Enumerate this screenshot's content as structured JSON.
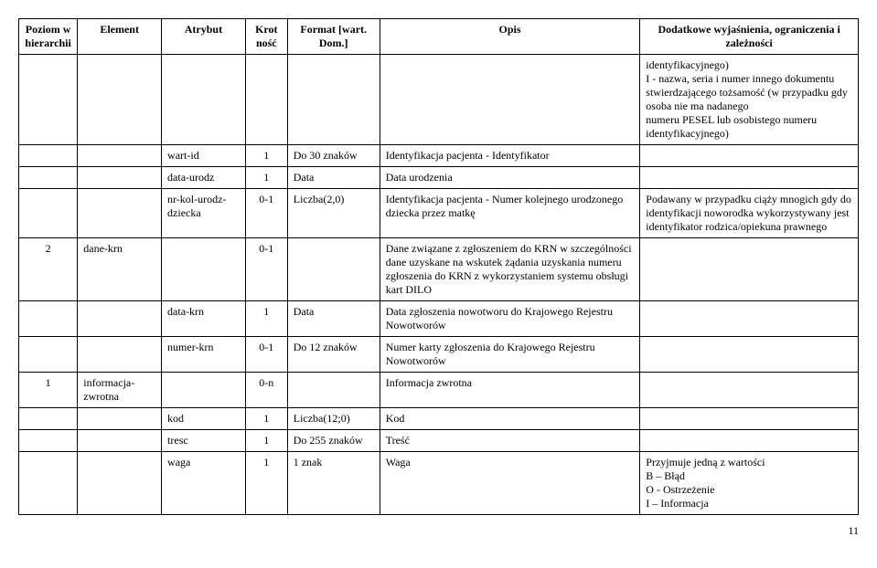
{
  "headers": {
    "poziom": "Poziom w hierarchii",
    "element": "Element",
    "atrybut": "Atrybut",
    "krot": "Krot ność",
    "format": "Format [wart. Dom.]",
    "opis": "Opis",
    "dodatkowe": "Dodatkowe wyjaśnienia, ograniczenia i zależności"
  },
  "rows": [
    {
      "poziom": "",
      "element": "",
      "atrybut": "",
      "krot": "",
      "format": "",
      "opis": "",
      "dodatkowe": "identyfikacyjnego)\nI - nazwa, seria i numer innego dokumentu stwierdzającego tożsamość (w przypadku gdy osoba nie ma nadanego\nnumeru PESEL lub osobistego numeru identyfikacyjnego)"
    },
    {
      "poziom": "",
      "element": "",
      "atrybut": "wart-id",
      "krot": "1",
      "format": "Do 30 znaków",
      "opis": "Identyfikacja pacjenta  - Identyfikator",
      "dodatkowe": ""
    },
    {
      "poziom": "",
      "element": "",
      "atrybut": "data-urodz",
      "krot": "1",
      "format": "Data",
      "opis": "Data urodzenia",
      "dodatkowe": ""
    },
    {
      "poziom": "",
      "element": "",
      "atrybut": "nr-kol-urodz-dziecka",
      "krot": "0-1",
      "format": "Liczba(2,0)",
      "opis": "Identyfikacja pacjenta - Numer kolejnego urodzonego dziecka przez matkę",
      "dodatkowe": "Podawany w przypadku ciąży mnogich gdy do identyfikacji noworodka wykorzystywany jest identyfikator rodzica/opiekuna prawnego"
    },
    {
      "poziom": "2",
      "element": "dane-krn",
      "atrybut": "",
      "krot": "0-1",
      "format": "",
      "opis": "Dane związane z zgłoszeniem do KRN w szczególności dane uzyskane na wskutek żądania uzyskania numeru zgłoszenia do KRN z wykorzystaniem systemu obsługi kart DILO",
      "dodatkowe": ""
    },
    {
      "poziom": "",
      "element": "",
      "atrybut": "data-krn",
      "krot": "1",
      "format": "Data",
      "opis": "Data zgłoszenia nowotworu do Krajowego Rejestru Nowotworów",
      "dodatkowe": ""
    },
    {
      "poziom": "",
      "element": "",
      "atrybut": "numer-krn",
      "krot": "0-1",
      "format": "Do 12 znaków",
      "opis": "Numer karty zgłoszenia do Krajowego Rejestru Nowotworów",
      "dodatkowe": ""
    },
    {
      "poziom": "1",
      "element": "informacja-zwrotna",
      "atrybut": "",
      "krot": "0-n",
      "format": "",
      "opis": "Informacja zwrotna",
      "dodatkowe": ""
    },
    {
      "poziom": "",
      "element": "",
      "atrybut": "kod",
      "krot": "1",
      "format": "Liczba(12;0)",
      "opis": "Kod",
      "dodatkowe": ""
    },
    {
      "poziom": "",
      "element": "",
      "atrybut": "tresc",
      "krot": "1",
      "format": "Do 255 znaków",
      "opis": "Treść",
      "dodatkowe": ""
    },
    {
      "poziom": "",
      "element": "",
      "atrybut": "waga",
      "krot": "1",
      "format": "1 znak",
      "opis": "Waga",
      "dodatkowe": "Przyjmuje jedną z wartości\nB – Błąd\nO - Ostrzeżenie\nI – Informacja"
    }
  ],
  "page_number": "11"
}
